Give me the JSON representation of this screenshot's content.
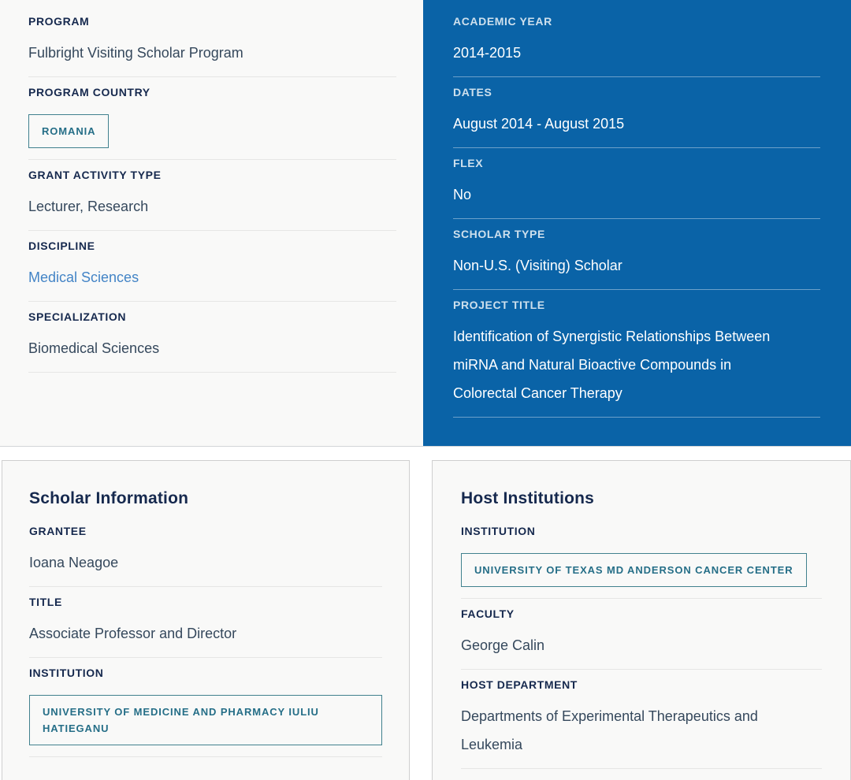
{
  "colors": {
    "panel_blue": "#0a63a7",
    "badge_teal_border": "#41818e",
    "badge_teal_text": "#256e87",
    "label_navy": "#16294e",
    "value_slate": "#35485c",
    "link_blue": "#4384c6",
    "panel_gray": "#f9f9f8"
  },
  "overview": {
    "left": {
      "rows": [
        {
          "label": "PROGRAM",
          "value": "Fulbright Visiting Scholar Program"
        },
        {
          "label": "PROGRAM COUNTRY",
          "value": "ROMANIA"
        },
        {
          "label": "GRANT ACTIVITY TYPE",
          "value": "Lecturer, Research"
        },
        {
          "label": "DISCIPLINE",
          "value": "Medical Sciences"
        },
        {
          "label": "SPECIALIZATION",
          "value": "Biomedical Sciences"
        }
      ]
    },
    "right": {
      "rows": [
        {
          "label": "ACADEMIC YEAR",
          "value": "2014-2015"
        },
        {
          "label": "DATES",
          "value": "August 2014 - August 2015"
        },
        {
          "label": "FLEX",
          "value": "No"
        },
        {
          "label": "SCHOLAR TYPE",
          "value": "Non-U.S. (Visiting) Scholar"
        },
        {
          "label": "PROJECT TITLE",
          "value": "Identification of Synergistic Relationships Between miRNA and Natural Bioactive Compounds in Colorectal Cancer Therapy"
        }
      ]
    }
  },
  "scholar_information": {
    "title": "Scholar Information",
    "rows": [
      {
        "label": "GRANTEE",
        "value": "Ioana Neagoe"
      },
      {
        "label": "TITLE",
        "value": "Associate Professor and Director"
      },
      {
        "label": "INSTITUTION",
        "value": "UNIVERSITY OF MEDICINE AND PHARMACY IULIU HATIEGANU"
      }
    ]
  },
  "host_institutions": {
    "title": "Host Institutions",
    "rows": [
      {
        "label": "INSTITUTION",
        "value": "UNIVERSITY OF TEXAS MD ANDERSON CANCER CENTER"
      },
      {
        "label": "FACULTY",
        "value": "George Calin"
      },
      {
        "label": "HOST DEPARTMENT",
        "value": "Departments of Experimental Therapeutics and Leukemia"
      }
    ]
  }
}
